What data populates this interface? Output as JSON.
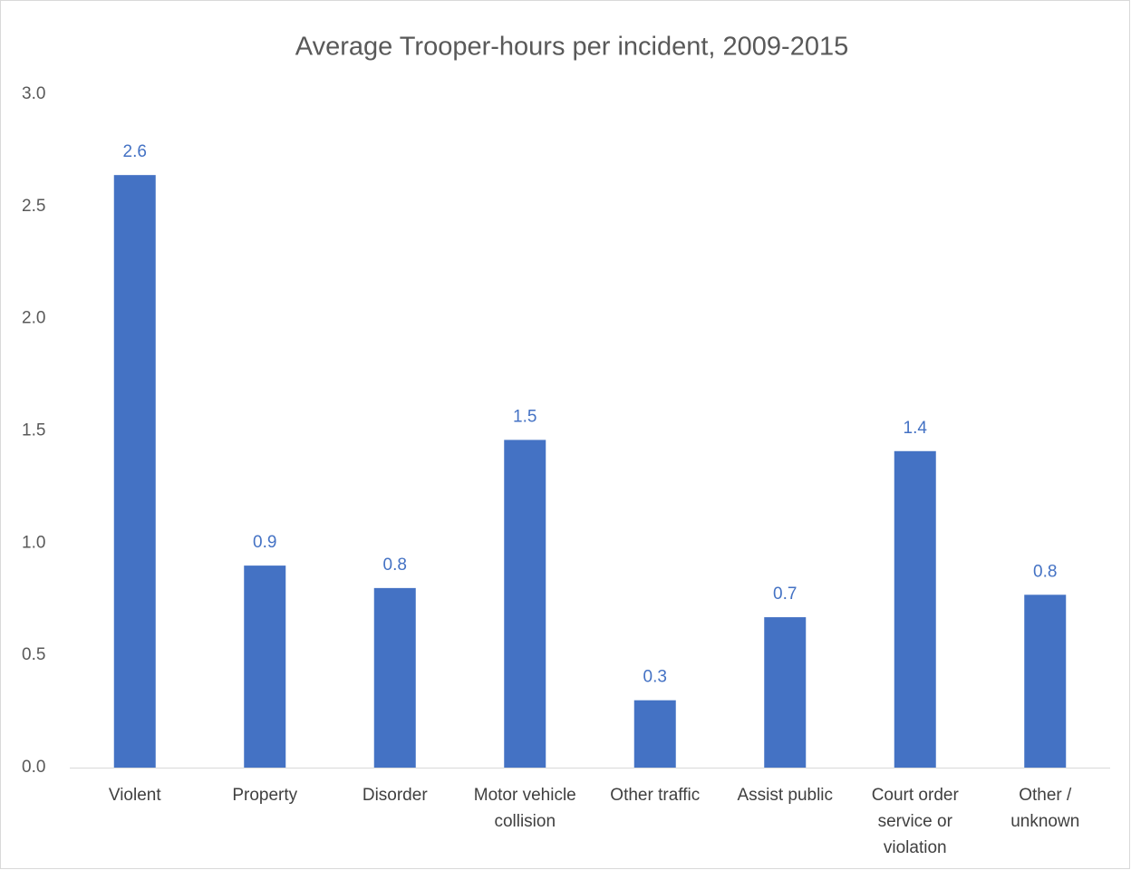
{
  "chart_data": {
    "type": "bar",
    "title": "Average Trooper-hours per incident, 2009-2015",
    "categories": [
      "Violent",
      "Property",
      "Disorder",
      "Motor vehicle collision",
      "Other traffic",
      "Assist public",
      "Court order service or violation",
      "Other / unknown"
    ],
    "values": [
      2.64,
      0.9,
      0.8,
      1.46,
      0.3,
      0.67,
      1.41,
      0.77
    ],
    "value_labels": [
      "2.6",
      "0.9",
      "0.8",
      "1.5",
      "0.3",
      "0.7",
      "1.4",
      "0.8"
    ],
    "color": "#4472c4",
    "ylim": [
      0,
      3
    ],
    "yticks": [
      {
        "value": 0,
        "label": "0.0"
      },
      0.5,
      {
        "value": 1,
        "label": "1.0"
      },
      1.5,
      {
        "value": 2,
        "label": "2.0"
      },
      2.5,
      {
        "value": 3,
        "label": "3.0"
      }
    ],
    "grid": false
  }
}
